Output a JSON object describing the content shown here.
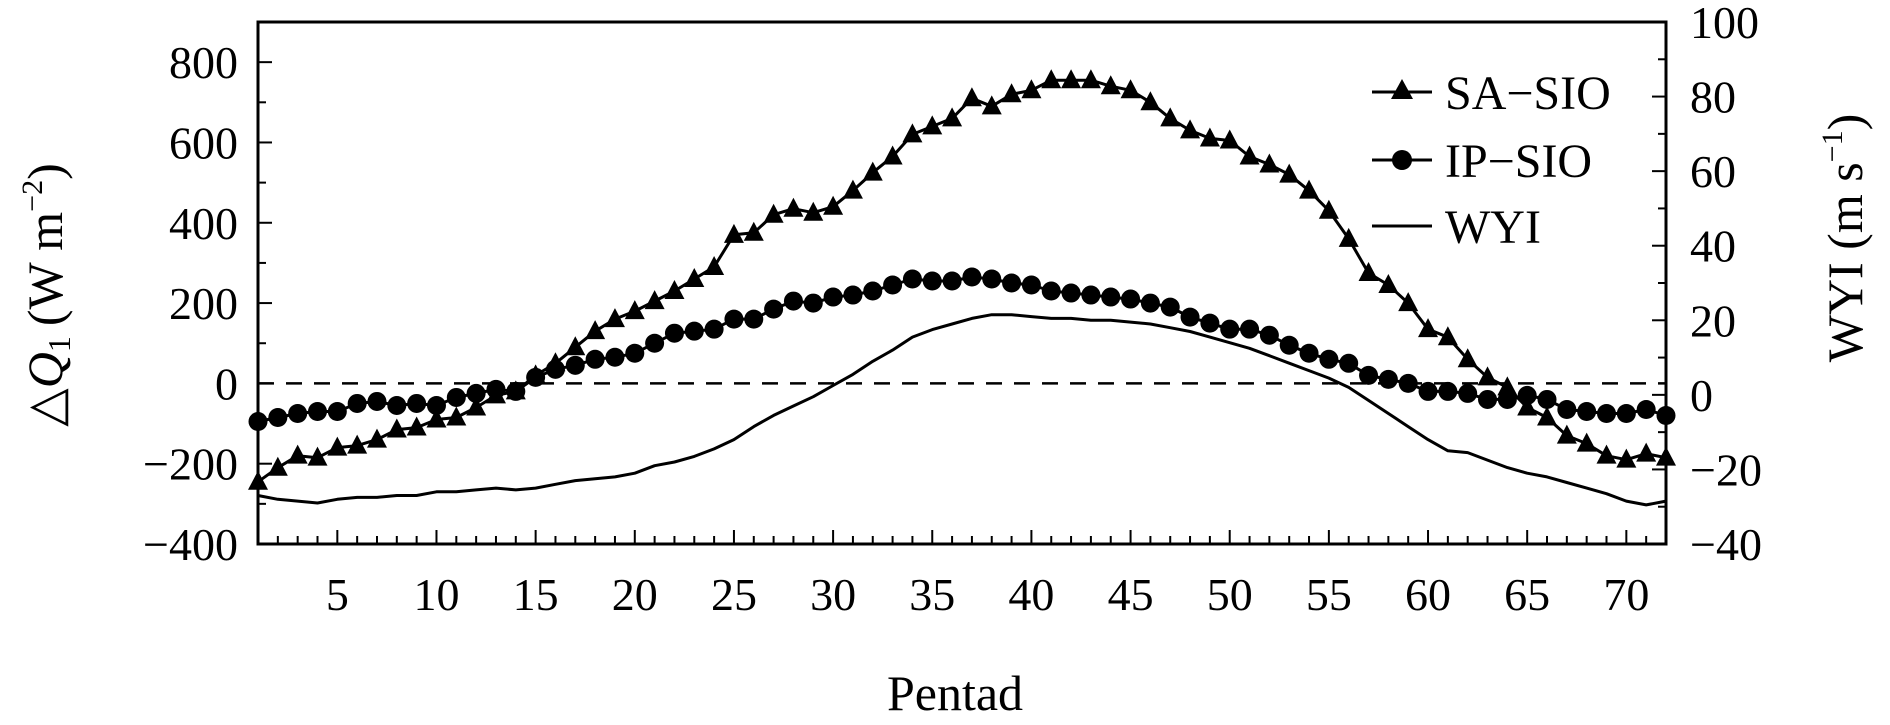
{
  "chart_data": {
    "type": "line",
    "xlabel": "Pentad",
    "ylabel_left": {
      "delta": "△",
      "q": "Q",
      "q_sub": "1",
      "units": "(W m",
      "units_sup": "−2",
      "close": ")"
    },
    "ylabel_right": {
      "base": "WYI (m s",
      "sup": "−1",
      "close": ")"
    },
    "xlim": [
      1,
      72
    ],
    "ylim_left": [
      -400,
      900
    ],
    "ylim_right": [
      -40,
      100
    ],
    "x_ticks": [
      5,
      10,
      15,
      20,
      25,
      30,
      35,
      40,
      45,
      50,
      55,
      60,
      65,
      70
    ],
    "y_left_ticks": [
      -400,
      -200,
      0,
      200,
      400,
      600,
      800
    ],
    "y_left_tick_labels": [
      "−400",
      "−200",
      "0",
      "200",
      "400",
      "600",
      "800"
    ],
    "y_right_ticks": [
      -40,
      -20,
      0,
      20,
      40,
      60,
      80,
      100
    ],
    "y_right_tick_labels": [
      "−40",
      "−20",
      "0",
      "20",
      "40",
      "60",
      "80",
      "100"
    ],
    "zero_line": "dashed",
    "legend_position": "top-right",
    "x": [
      1,
      2,
      3,
      4,
      5,
      6,
      7,
      8,
      9,
      10,
      11,
      12,
      13,
      14,
      15,
      16,
      17,
      18,
      19,
      20,
      21,
      22,
      23,
      24,
      25,
      26,
      27,
      28,
      29,
      30,
      31,
      32,
      33,
      34,
      35,
      36,
      37,
      38,
      39,
      40,
      41,
      42,
      43,
      44,
      45,
      46,
      47,
      48,
      49,
      50,
      51,
      52,
      53,
      54,
      55,
      56,
      57,
      58,
      59,
      60,
      61,
      62,
      63,
      64,
      65,
      66,
      67,
      68,
      69,
      70,
      71,
      72
    ],
    "series": [
      {
        "name": "SA−SIO",
        "axis": "left",
        "marker": "triangle",
        "values": [
          -245,
          -210,
          -180,
          -185,
          -160,
          -155,
          -140,
          -115,
          -110,
          -90,
          -85,
          -60,
          -30,
          -20,
          20,
          50,
          90,
          130,
          160,
          180,
          205,
          230,
          260,
          290,
          370,
          375,
          420,
          435,
          425,
          440,
          480,
          525,
          565,
          620,
          640,
          660,
          710,
          690,
          720,
          730,
          755,
          755,
          755,
          740,
          730,
          700,
          660,
          630,
          610,
          605,
          565,
          545,
          520,
          480,
          430,
          360,
          275,
          245,
          200,
          135,
          115,
          60,
          15,
          -10,
          -60,
          -85,
          -130,
          -150,
          -180,
          -190,
          -175,
          -185
        ]
      },
      {
        "name": "IP−SIO",
        "axis": "left",
        "marker": "circle",
        "values": [
          -95,
          -85,
          -75,
          -70,
          -70,
          -50,
          -45,
          -55,
          -50,
          -55,
          -35,
          -25,
          -15,
          -20,
          15,
          35,
          45,
          60,
          65,
          75,
          100,
          125,
          130,
          135,
          160,
          160,
          185,
          205,
          200,
          215,
          220,
          230,
          245,
          260,
          255,
          255,
          265,
          260,
          250,
          245,
          230,
          225,
          220,
          215,
          210,
          200,
          190,
          165,
          150,
          135,
          135,
          120,
          95,
          75,
          60,
          50,
          20,
          10,
          0,
          -20,
          -20,
          -25,
          -40,
          -40,
          -30,
          -40,
          -65,
          -70,
          -75,
          -75,
          -65,
          -80
        ]
      },
      {
        "name": "WYI",
        "axis": "right",
        "marker": "none",
        "values": [
          -27,
          -28,
          -28.5,
          -29,
          -28,
          -27.5,
          -27.5,
          -27,
          -27,
          -26,
          -26,
          -25.5,
          -25,
          -25.5,
          -25,
          -24,
          -23,
          -22.5,
          -22,
          -21,
          -19,
          -18,
          -16.5,
          -14.5,
          -12,
          -8.5,
          -5.5,
          -3,
          -0.5,
          2.5,
          5.5,
          9,
          12,
          15.5,
          17.5,
          19,
          20.5,
          21.5,
          21.5,
          21,
          20.5,
          20.5,
          20,
          20,
          19.5,
          19,
          18,
          17,
          15.5,
          14,
          12.5,
          10.5,
          8.5,
          6.5,
          4.5,
          2,
          -1.5,
          -5,
          -8.5,
          -12,
          -15,
          -15.5,
          -17.5,
          -19.5,
          -21,
          -22,
          -23.5,
          -25,
          -26.5,
          -28.5,
          -29.5,
          -28.5
        ]
      }
    ]
  }
}
